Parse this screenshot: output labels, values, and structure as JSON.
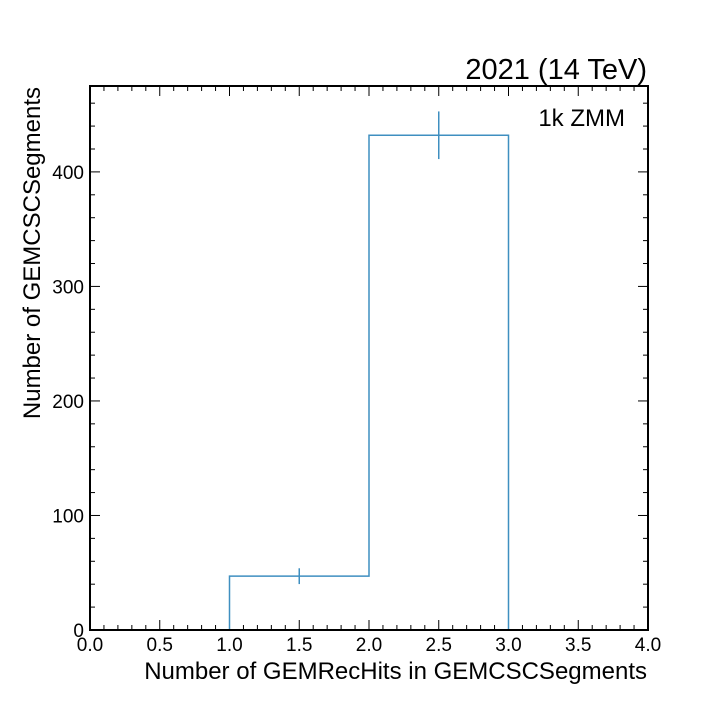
{
  "chart_data": {
    "type": "histogram",
    "title_right": "2021 (14 TeV)",
    "annotation": "1k ZMM",
    "xlabel": "Number of GEMRecHits in GEMCSCSegments",
    "ylabel": "Number of GEMCSCSegments",
    "xlim": [
      0.0,
      4.0
    ],
    "ylim": [
      0,
      475
    ],
    "xticks": [
      0.0,
      0.5,
      1.0,
      1.5,
      2.0,
      2.5,
      3.0,
      3.5,
      4.0
    ],
    "xtick_labels": [
      "0.0",
      "0.5",
      "1.0",
      "1.5",
      "2.0",
      "2.5",
      "3.0",
      "3.5",
      "4.0"
    ],
    "yticks": [
      0,
      100,
      200,
      300,
      400
    ],
    "ytick_labels": [
      "0",
      "100",
      "200",
      "300",
      "400"
    ],
    "bin_edges": [
      0,
      1,
      2,
      3,
      4
    ],
    "values": [
      0,
      47,
      432,
      0
    ],
    "errors": [
      0,
      6.9,
      20.8,
      0
    ],
    "line_color": "#3f8fc0",
    "grid": false
  }
}
